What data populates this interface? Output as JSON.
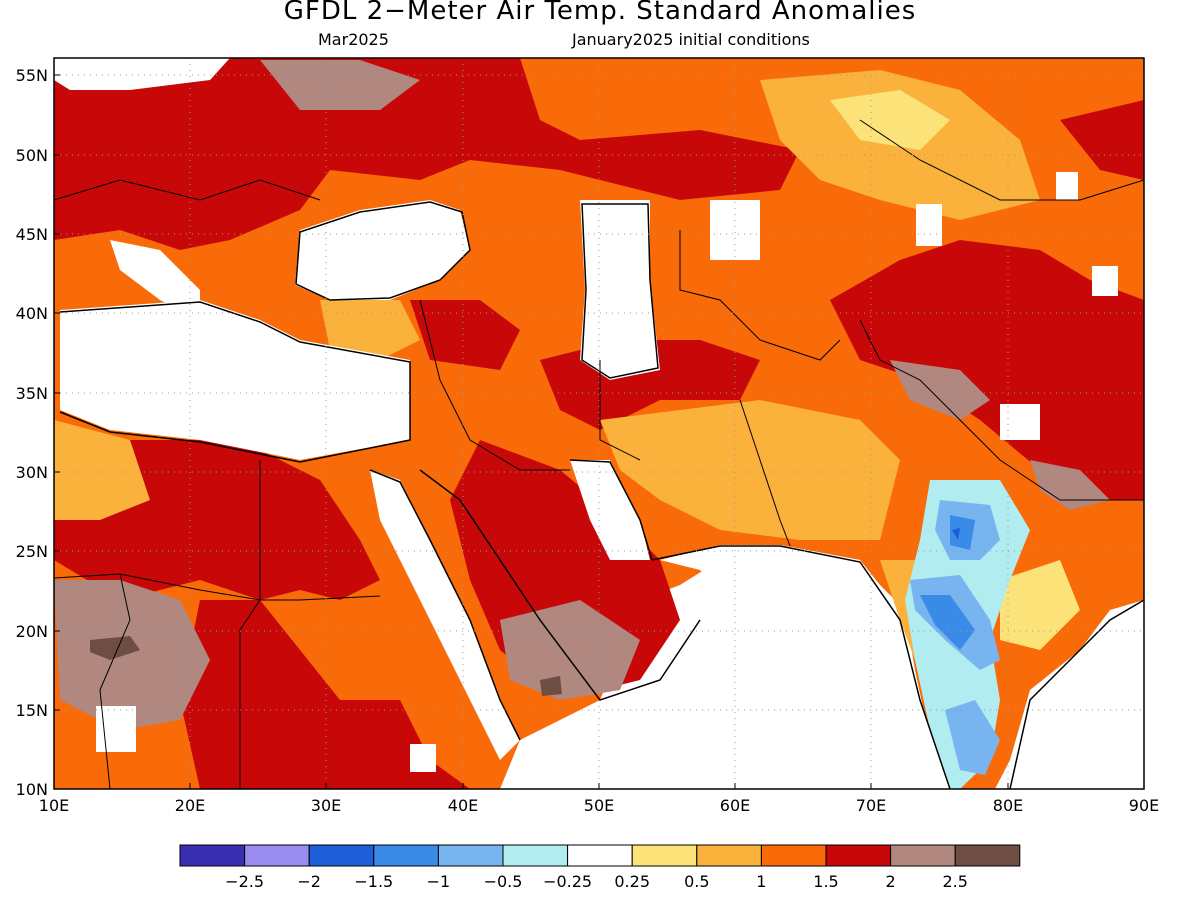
{
  "title": "GFDL 2−Meter Air Temp. Standard Anomalies",
  "subtitle_left": "Mar2025",
  "subtitle_right": "January2025 initial conditions",
  "lat_labels": [
    "55N",
    "50N",
    "45N",
    "40N",
    "35N",
    "30N",
    "25N",
    "20N",
    "15N",
    "10N"
  ],
  "lon_labels": [
    "10E",
    "20E",
    "30E",
    "40E",
    "50E",
    "60E",
    "70E",
    "80E",
    "90E"
  ],
  "colorbar": {
    "colors": [
      "#3a2fb0",
      "#9a8cf0",
      "#1e5fd8",
      "#3a8ae8",
      "#78b4f0",
      "#b0ecf0",
      "#ffffff",
      "#fbe37a",
      "#fbb23c",
      "#f96a08",
      "#c80808",
      "#b08880",
      "#6e4e44"
    ],
    "labels": [
      "−2.5",
      "−2",
      "−1.5",
      "−1",
      "−0.5",
      "−0.25",
      "0.25",
      "0.5",
      "1",
      "1.5",
      "2",
      "2.5"
    ]
  },
  "map_extent": {
    "lon": [
      10,
      90
    ],
    "lat": [
      10,
      56
    ]
  }
}
